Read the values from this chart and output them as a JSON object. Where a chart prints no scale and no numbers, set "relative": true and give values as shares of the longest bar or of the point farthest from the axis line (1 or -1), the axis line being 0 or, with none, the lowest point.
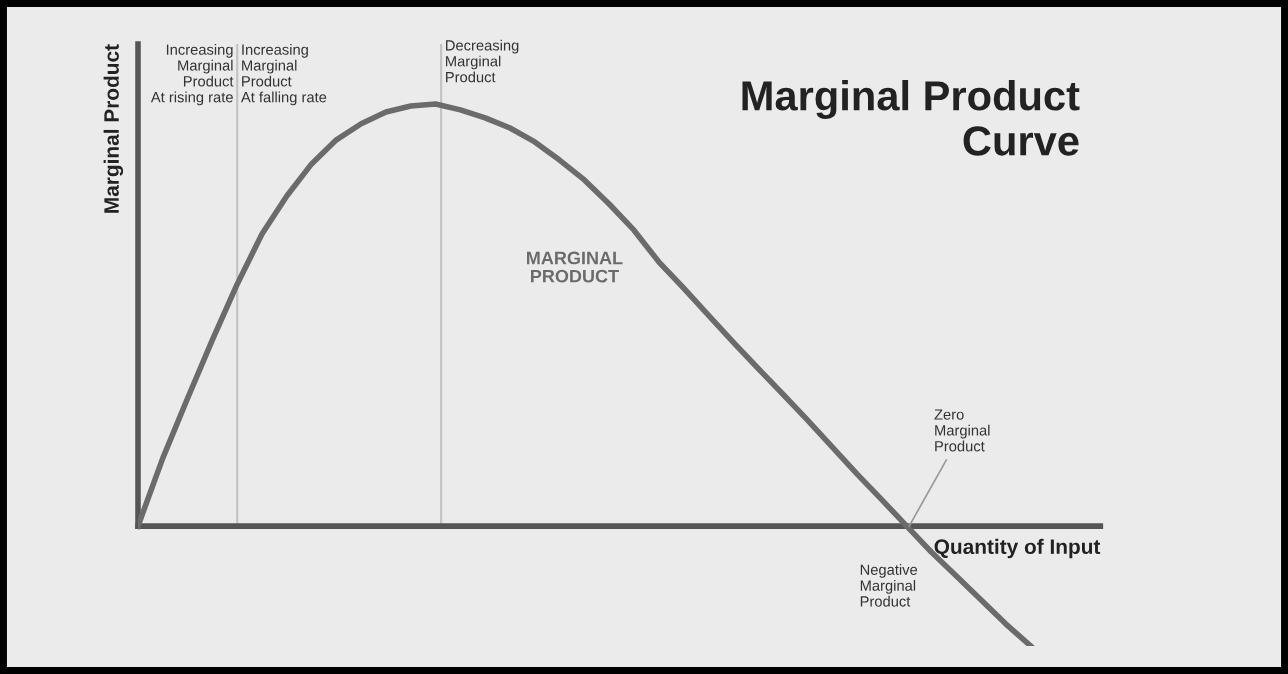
{
  "chart_data": {
    "type": "line",
    "relative": true,
    "xlabel": "Quantity of Input",
    "ylabel": "Marginal Product",
    "categories": [
      null,
      null,
      null,
      null,
      null,
      null,
      null,
      null,
      null,
      null,
      null,
      null,
      null,
      null,
      null,
      null,
      null,
      null,
      null,
      null,
      null,
      null,
      null,
      null,
      null,
      null,
      null,
      null,
      null,
      null,
      null,
      null,
      null,
      null,
      null,
      null,
      null
    ],
    "series": [
      {
        "name": "MARGINAL\nPRODUCT",
        "color": "#6b6b6b",
        "values": [
          0,
          0.161,
          0.303,
          0.441,
          0.573,
          0.692,
          0.782,
          0.858,
          0.915,
          0.953,
          0.981,
          0.995,
          1.0,
          0.986,
          0.967,
          0.943,
          0.91,
          0.867,
          0.82,
          0.763,
          0.701,
          0.626,
          0.564,
          0.5,
          0.436,
          0.374,
          0.313,
          0.251,
          0.187,
          0.123,
          0.062,
          0,
          -0.062,
          -0.118,
          -0.175,
          -0.232,
          -0.284
        ]
      }
    ],
    "title": "Marginal Product\nCurve",
    "annotations": [
      "Increasing\nMarginal\nProduct\nAt rising rate",
      "Increasing\nMarginal\nProduct\nAt falling rate",
      "Decreasing\nMarginal\nProduct",
      "Zero\nMarginal\nProduct",
      "Negative\nMarginal\nProduct"
    ],
    "legend": false,
    "marker": "none",
    "line_style": "solid"
  }
}
